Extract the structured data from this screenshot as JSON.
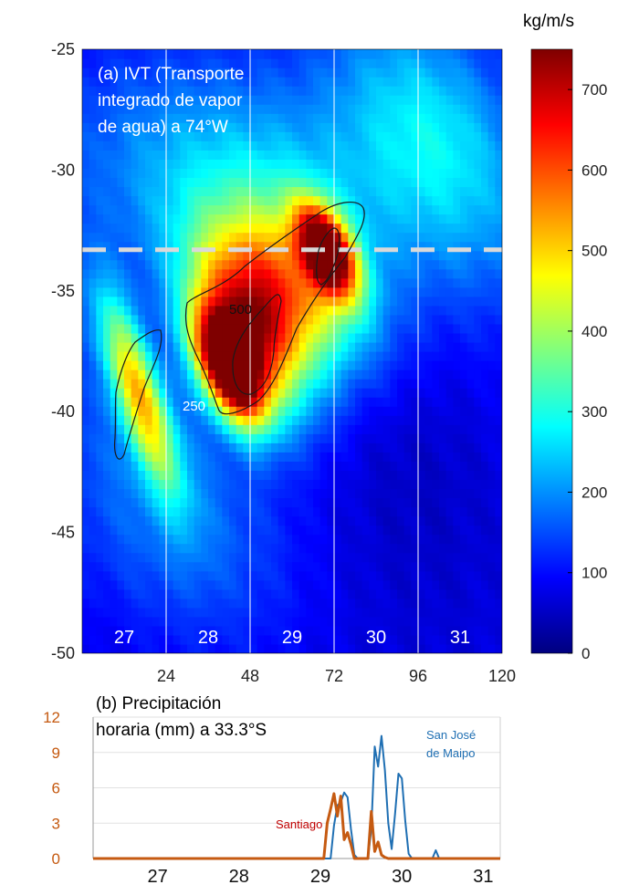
{
  "chart_data": [
    {
      "type": "heatmap",
      "panel_label": "(a) IVT (Transporte integrado de vapor de agua) a 74°W",
      "title_lines": [
        "(a) IVT (Transporte",
        "integrado de vapor",
        "de agua) a 74°W"
      ],
      "x_ticks": [
        24,
        48,
        72,
        96,
        120
      ],
      "xlim": [
        0,
        120
      ],
      "y_ticks": [
        -25,
        -30,
        -35,
        -40,
        -45,
        -50
      ],
      "ylim": [
        -50,
        -25
      ],
      "day_labels": [
        "27",
        "28",
        "29",
        "30",
        "31"
      ],
      "day_label_centers": [
        12,
        36,
        60,
        84,
        108
      ],
      "day_boundaries": [
        24,
        48,
        72,
        96
      ],
      "reference_latitude": -33.3,
      "colorbar": {
        "unit": "kg/m/s",
        "ticks": [
          0,
          100,
          200,
          300,
          400,
          500,
          600,
          700
        ],
        "range": [
          0,
          750
        ],
        "colormap": [
          "#00007f",
          "#0000ff",
          "#007fff",
          "#00ffff",
          "#7fff7f",
          "#ffff00",
          "#ff7f00",
          "#ff0000",
          "#7f0000"
        ]
      },
      "contour_labels": [
        {
          "text": "500",
          "x": 46,
          "y": -36.5
        },
        {
          "text": "250",
          "x": 33,
          "y": -39.8
        }
      ],
      "ivt_features": [
        {
          "x": 42,
          "y": -38.2,
          "sx": 6,
          "sy": 1.6,
          "peak": 700
        },
        {
          "x": 48,
          "y": -36.6,
          "sx": 10,
          "sy": 2.4,
          "peak": 430
        },
        {
          "x": 70,
          "y": -33.3,
          "sx": 5,
          "sy": 1.3,
          "peak": 620
        },
        {
          "x": 60,
          "y": -34.8,
          "sx": 14,
          "sy": 2.4,
          "peak": 330
        },
        {
          "x": 16,
          "y": -39.2,
          "sx": 5,
          "sy": 2.8,
          "peak": 380
        },
        {
          "x": 44,
          "y": -30.5,
          "sx": 30,
          "sy": 3.5,
          "peak": 150
        },
        {
          "x": 100,
          "y": -28.5,
          "sx": 18,
          "sy": 4,
          "peak": 170
        },
        {
          "x": 25,
          "y": -44,
          "sx": 22,
          "sy": 4,
          "peak": 110
        }
      ]
    },
    {
      "type": "line",
      "panel_label": "(b) Precipitación horaria (mm) a 33.3°S",
      "title_lines": [
        "(b) Precipitación",
        "horaria (mm) a 33.3°S"
      ],
      "y_ticks": [
        0,
        3,
        6,
        9,
        12
      ],
      "ylim": [
        0,
        12
      ],
      "xlim": [
        0,
        120
      ],
      "day_labels": [
        "27",
        "28",
        "29",
        "30",
        "31"
      ],
      "day_label_centers": [
        12,
        36,
        60,
        84,
        108
      ],
      "series": [
        {
          "name": "San José de Maipo",
          "label_lines": [
            "San José",
            "de Maipo"
          ],
          "color": "#1f6fb3",
          "x": [
            0,
            70,
            71,
            72,
            73,
            74,
            75,
            76,
            77,
            78,
            79,
            80,
            81,
            82,
            83,
            84,
            85,
            86,
            87,
            88,
            89,
            90,
            91,
            92,
            93,
            94,
            95,
            96,
            97,
            98,
            99,
            100,
            101,
            102,
            103,
            104,
            105,
            106,
            120
          ],
          "values": [
            0,
            0,
            2.8,
            4.5,
            4.8,
            5.6,
            5.2,
            2.5,
            0.3,
            0,
            0,
            0,
            0,
            2.5,
            9.5,
            7.8,
            10.4,
            7.5,
            3.0,
            0.8,
            3.8,
            7.2,
            6.8,
            3.2,
            0.4,
            0,
            0,
            0,
            0,
            0,
            0,
            0,
            0.7,
            0,
            0,
            0,
            0,
            0,
            0
          ]
        },
        {
          "name": "Santiago",
          "label_lines": [
            "Santiago"
          ],
          "color": "#c55a11",
          "x": [
            0,
            68,
            69,
            70,
            71,
            72,
            73,
            74,
            75,
            76,
            77,
            78,
            79,
            80,
            81,
            82,
            83,
            84,
            85,
            86,
            87,
            120
          ],
          "values": [
            0,
            0,
            3.0,
            4.2,
            5.5,
            3.6,
            5.3,
            1.6,
            2.2,
            1.2,
            0,
            0,
            0,
            0,
            0,
            4.0,
            0.6,
            1.4,
            0.3,
            0.1,
            0,
            0
          ]
        }
      ]
    }
  ]
}
